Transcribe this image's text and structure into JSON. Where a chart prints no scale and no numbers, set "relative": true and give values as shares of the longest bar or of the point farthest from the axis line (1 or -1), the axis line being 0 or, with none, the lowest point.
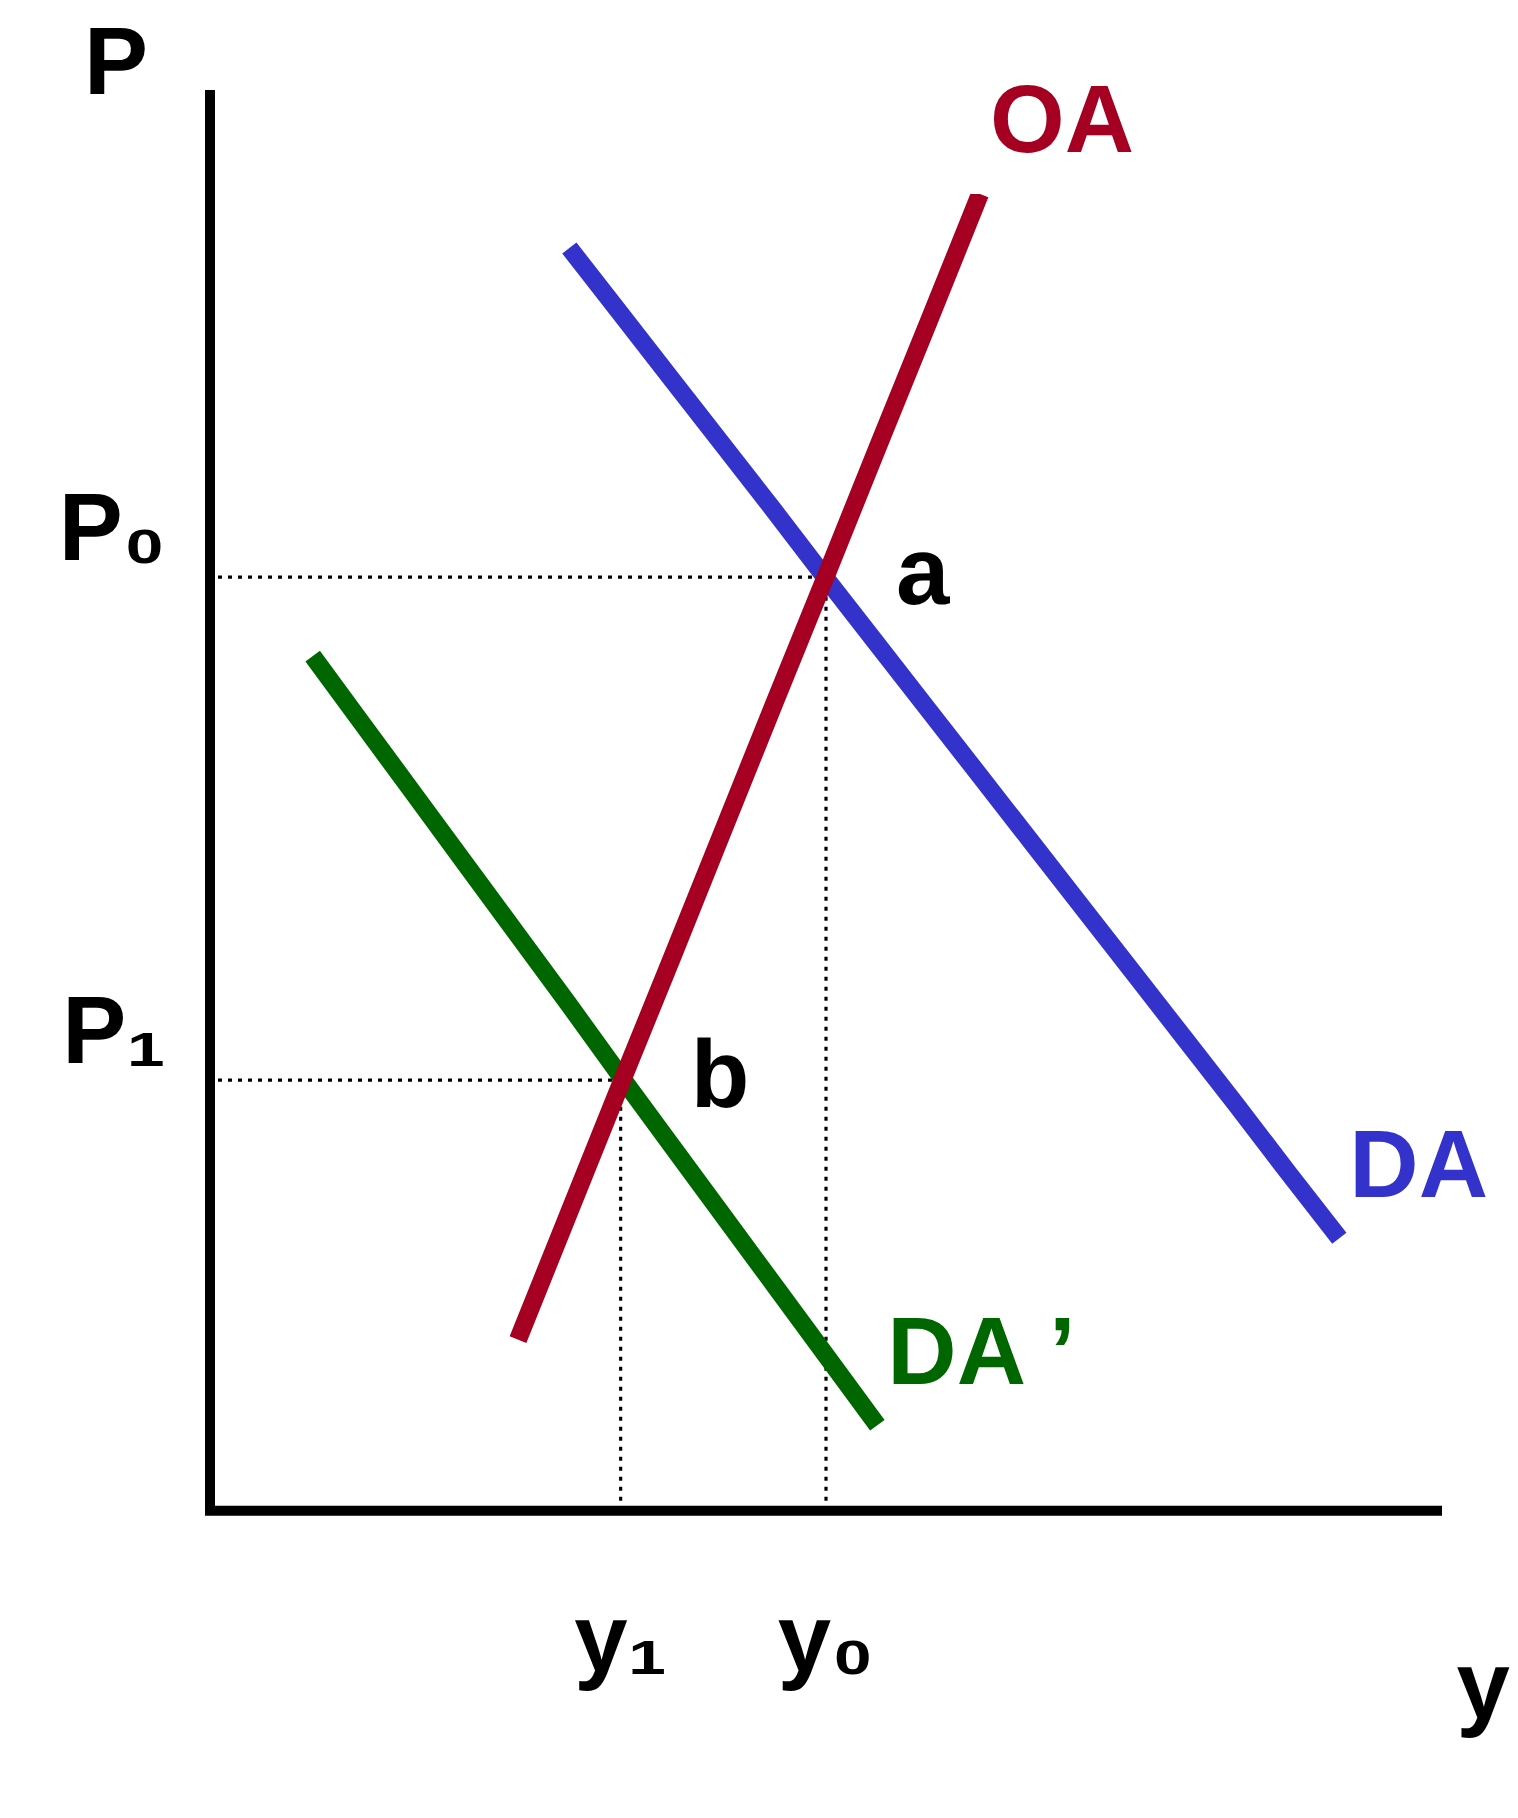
{
  "chart_data": {
    "type": "line",
    "relative": true,
    "xlabel": "y",
    "ylabel": "P",
    "tick_labels": "x",
    "legend": false,
    "grid": false,
    "marker": "none",
    "categories": [
      null,
      null,
      null,
      null,
      null,
      null,
      null,
      null,
      "y₁",
      null,
      null,
      null,
      "y₀",
      null,
      null,
      null,
      null,
      null,
      null,
      null,
      null,
      null,
      null,
      null,
      null
    ],
    "series": [
      {
        "name": "OA",
        "color": "#a50021",
        "values": [
          null,
          null,
          null,
          null,
          null,
          null,
          0.13,
          0.227,
          0.324,
          0.42,
          0.517,
          0.614,
          0.71,
          0.807,
          0.903,
          1,
          null,
          null,
          null,
          null,
          null,
          null,
          null,
          null,
          null
        ]
      },
      {
        "name": "DA",
        "color": "#3333cc",
        "values": [
          null,
          null,
          null,
          null,
          null,
          null,
          null,
          0.959,
          0.909,
          0.859,
          0.809,
          0.759,
          0.708,
          0.658,
          0.608,
          0.558,
          0.508,
          0.458,
          0.408,
          0.358,
          0.308,
          0.257,
          0.207,
          null,
          null
        ]
      },
      {
        "name": "DA ’",
        "color": "#006600",
        "values": [
          null,
          null,
          0.649,
          0.596,
          0.543,
          0.49,
          0.437,
          0.384,
          0.33,
          0.277,
          0.224,
          0.171,
          0.118,
          0.065,
          null,
          null,
          null,
          null,
          null,
          null,
          null,
          null,
          null,
          null,
          null
        ]
      }
    ],
    "ref_lines": [
      {
        "axis": "y",
        "value": 0.709,
        "label": "P₀",
        "color": "#000000",
        "line_style": "dotted"
      },
      {
        "axis": "y",
        "value": 0.327,
        "label": "P₁",
        "color": "#000000",
        "line_style": "dotted"
      },
      {
        "axis": "x",
        "value": "y₀",
        "color": "#000000",
        "line_style": "dotted"
      },
      {
        "axis": "x",
        "value": "y₁",
        "color": "#000000",
        "line_style": "dotted"
      }
    ],
    "annotations": [
      {
        "text": "a",
        "x": "y₀",
        "y": 0.709
      },
      {
        "text": "b",
        "x": "y₁",
        "y": 0.327
      }
    ]
  }
}
